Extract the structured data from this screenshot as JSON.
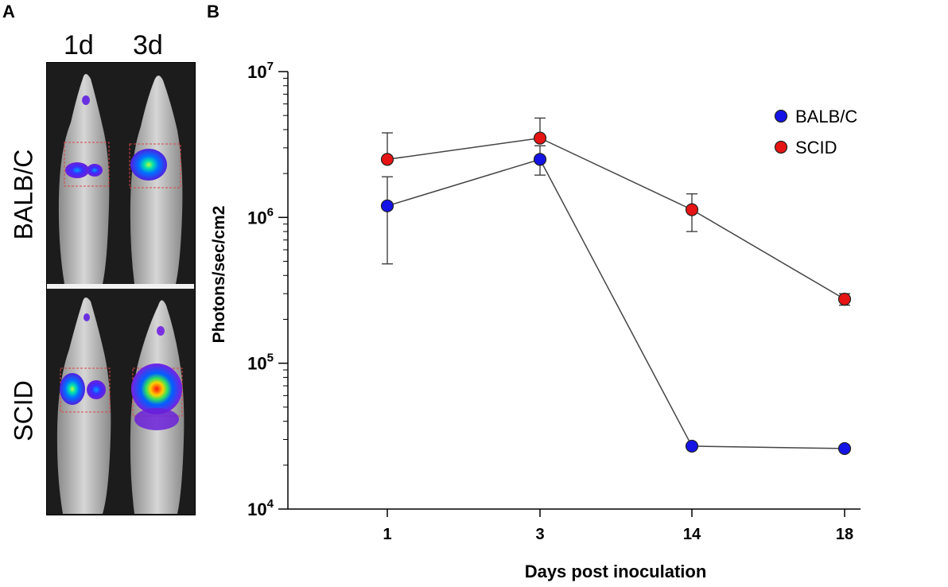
{
  "panel_a": {
    "letter": "A",
    "columns": [
      "1d",
      "3d"
    ],
    "rows": [
      "BALB/C",
      "SCID"
    ]
  },
  "panel_b": {
    "letter": "B"
  },
  "chart_data": {
    "type": "line",
    "title": "",
    "xlabel": "Days post inoculation",
    "ylabel": "Photons/sec/cm2",
    "yscale": "log",
    "ylim": [
      10000,
      10000000
    ],
    "y_ticks": [
      {
        "base": "10",
        "exp": "4",
        "value": 10000
      },
      {
        "base": "10",
        "exp": "5",
        "value": 100000
      },
      {
        "base": "10",
        "exp": "6",
        "value": 1000000
      },
      {
        "base": "10",
        "exp": "7",
        "value": 10000000
      }
    ],
    "categories": [
      "1",
      "3",
      "14",
      "18"
    ],
    "legend_position": "top-right",
    "series": [
      {
        "name": "BALB/C",
        "color": "#1414e6",
        "values": [
          1200000,
          2500000,
          27000,
          26000
        ],
        "err_low": [
          480000,
          1950000,
          27000,
          26000
        ],
        "err_high": [
          1900000,
          3100000,
          27000,
          26000
        ]
      },
      {
        "name": "SCID",
        "color": "#e61414",
        "values": [
          2500000,
          3500000,
          1130000,
          275000
        ],
        "err_low": [
          2500000,
          3500000,
          800000,
          250000
        ],
        "err_high": [
          3800000,
          4800000,
          1450000,
          300000
        ]
      }
    ]
  }
}
